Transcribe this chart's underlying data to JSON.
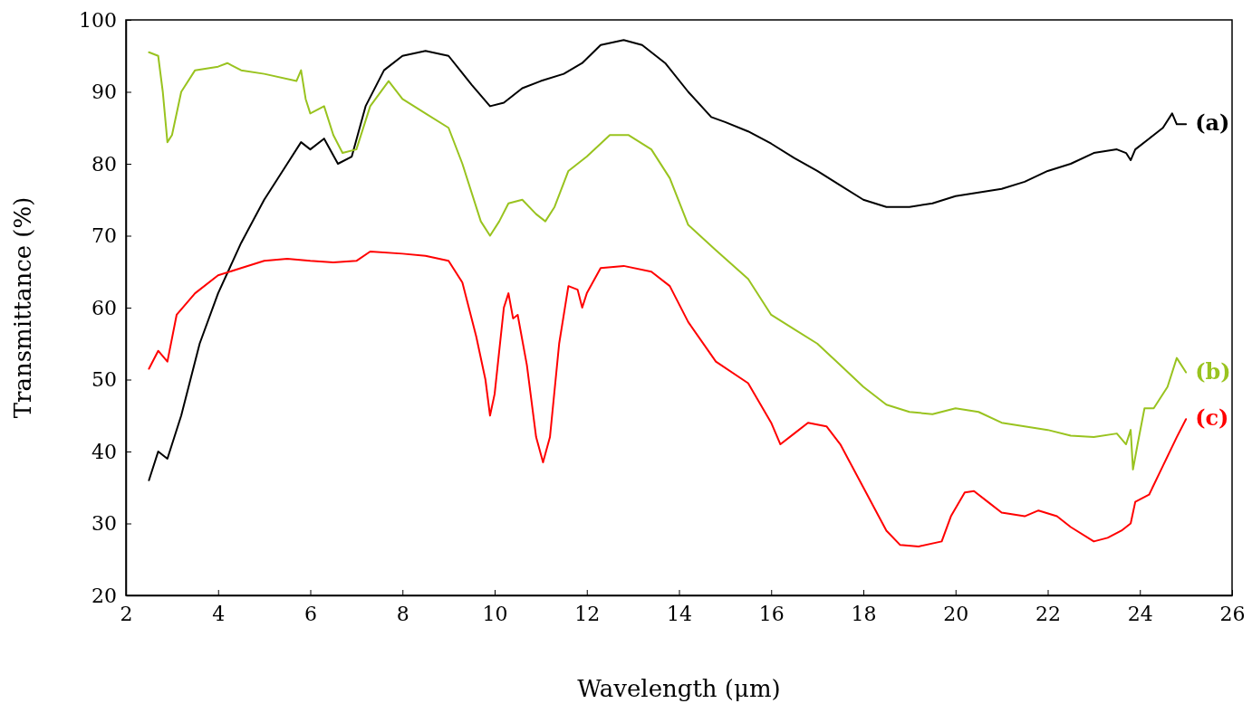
{
  "chart_data": {
    "type": "line",
    "xlabel": "Wavelength (μm)",
    "ylabel": "Transmittance (%)",
    "xlim": [
      2,
      26
    ],
    "xticks": [
      2,
      4,
      6,
      8,
      10,
      12,
      14,
      16,
      18,
      20,
      22,
      24,
      26
    ],
    "ylim": [
      20,
      100
    ],
    "yticks": [
      20,
      30,
      40,
      50,
      60,
      70,
      80,
      90,
      100
    ],
    "grid": false,
    "legend": false,
    "marker": "none",
    "line_style": "solid",
    "series": [
      {
        "name": "(a)",
        "color": "#000000",
        "x": [
          2.5,
          2.7,
          2.9,
          3.2,
          3.6,
          4,
          4.5,
          5,
          5.5,
          5.8,
          6,
          6.3,
          6.6,
          6.9,
          7.2,
          7.6,
          8,
          8.5,
          9,
          9.5,
          9.9,
          10.2,
          10.6,
          11,
          11.5,
          11.9,
          12.3,
          12.8,
          13.2,
          13.7,
          14.2,
          14.7,
          15,
          15.5,
          16,
          16.5,
          17,
          17.5,
          18,
          18.5,
          19,
          19.5,
          20,
          21,
          21.5,
          22,
          22.5,
          23,
          23.5,
          23.7,
          23.8,
          23.9,
          24.2,
          24.5,
          24.7,
          24.8,
          25
        ],
        "values": [
          36,
          40,
          39,
          45,
          55,
          62,
          69,
          75,
          80,
          83,
          82,
          83.5,
          80,
          81,
          88,
          93,
          95,
          95.7,
          95,
          91,
          88,
          88.5,
          90.5,
          91.5,
          92.5,
          94,
          96.5,
          97.2,
          96.5,
          94,
          90,
          86.5,
          85.8,
          84.5,
          82.8,
          80.8,
          79,
          77,
          75,
          74,
          74,
          74.5,
          75.5,
          76.5,
          77.5,
          79,
          80,
          81.5,
          82,
          81.5,
          80.5,
          82,
          83.5,
          85,
          87,
          85.5,
          85.5
        ]
      },
      {
        "name": "(b)",
        "color": "#99c31f",
        "x": [
          2.5,
          2.7,
          2.8,
          2.9,
          3.0,
          3.2,
          3.5,
          4,
          4.2,
          4.5,
          5,
          5.7,
          5.8,
          5.9,
          6.0,
          6.3,
          6.5,
          6.7,
          7,
          7.3,
          7.7,
          8,
          8.5,
          9,
          9.3,
          9.7,
          9.9,
          10.1,
          10.3,
          10.6,
          10.9,
          11.1,
          11.3,
          11.6,
          12,
          12.5,
          12.9,
          13.4,
          13.8,
          14.2,
          14.8,
          15.5,
          16,
          16.5,
          17,
          17.5,
          18,
          18.5,
          19,
          19.5,
          20,
          20.5,
          21,
          21.5,
          22,
          22.5,
          23,
          23.5,
          23.7,
          23.8,
          23.85,
          23.95,
          24.1,
          24.3,
          24.6,
          24.8,
          25
        ],
        "values": [
          95.5,
          95,
          90,
          83,
          84,
          90,
          93,
          93.5,
          94,
          93,
          92.5,
          91.5,
          93,
          89,
          87,
          88,
          84,
          81.5,
          82,
          88,
          91.5,
          89,
          87,
          85,
          80,
          72,
          70,
          72,
          74.5,
          75,
          73,
          72,
          74,
          79,
          81,
          84,
          84,
          82,
          78,
          71.5,
          68,
          64,
          59,
          57,
          55,
          52,
          49,
          46.5,
          45.5,
          45.2,
          46,
          45.5,
          44,
          43.5,
          43,
          42.2,
          42,
          42.5,
          41,
          43,
          37.5,
          41,
          46,
          46,
          49,
          53,
          51
        ]
      },
      {
        "name": "(c)",
        "color": "#ff0000",
        "x": [
          2.5,
          2.7,
          2.9,
          3.1,
          3.5,
          4,
          4.5,
          5,
          5.5,
          6,
          6.5,
          7,
          7.3,
          8,
          8.5,
          9,
          9.3,
          9.6,
          9.8,
          9.9,
          10.0,
          10.2,
          10.3,
          10.4,
          10.5,
          10.7,
          10.9,
          11.05,
          11.2,
          11.4,
          11.6,
          11.8,
          11.9,
          12,
          12.3,
          12.8,
          13.4,
          13.8,
          14.2,
          14.8,
          15.5,
          16,
          16.2,
          16.5,
          16.8,
          17.2,
          17.5,
          18,
          18.5,
          18.8,
          19.2,
          19.7,
          19.9,
          20.2,
          20.4,
          20.7,
          21,
          21.5,
          21.8,
          22.2,
          22.5,
          23,
          23.3,
          23.6,
          23.8,
          23.9,
          24.2,
          24.5,
          24.8,
          25
        ],
        "values": [
          51.5,
          54,
          52.5,
          59,
          62,
          64.5,
          65.5,
          66.5,
          66.8,
          66.5,
          66.3,
          66.5,
          67.8,
          67.5,
          67.2,
          66.5,
          63.5,
          56,
          50,
          45,
          48,
          60,
          62,
          58.5,
          59,
          52,
          42,
          38.5,
          42,
          55,
          63,
          62.5,
          60,
          62,
          65.5,
          65.8,
          65,
          63,
          58,
          52.5,
          49.5,
          44,
          41,
          42.5,
          44,
          43.5,
          41,
          35,
          29,
          27,
          26.8,
          27.5,
          31,
          34.3,
          34.5,
          33,
          31.5,
          31,
          31.8,
          31,
          29.5,
          27.5,
          28,
          29,
          30,
          33,
          34,
          38,
          42,
          44.5
        ]
      }
    ]
  }
}
